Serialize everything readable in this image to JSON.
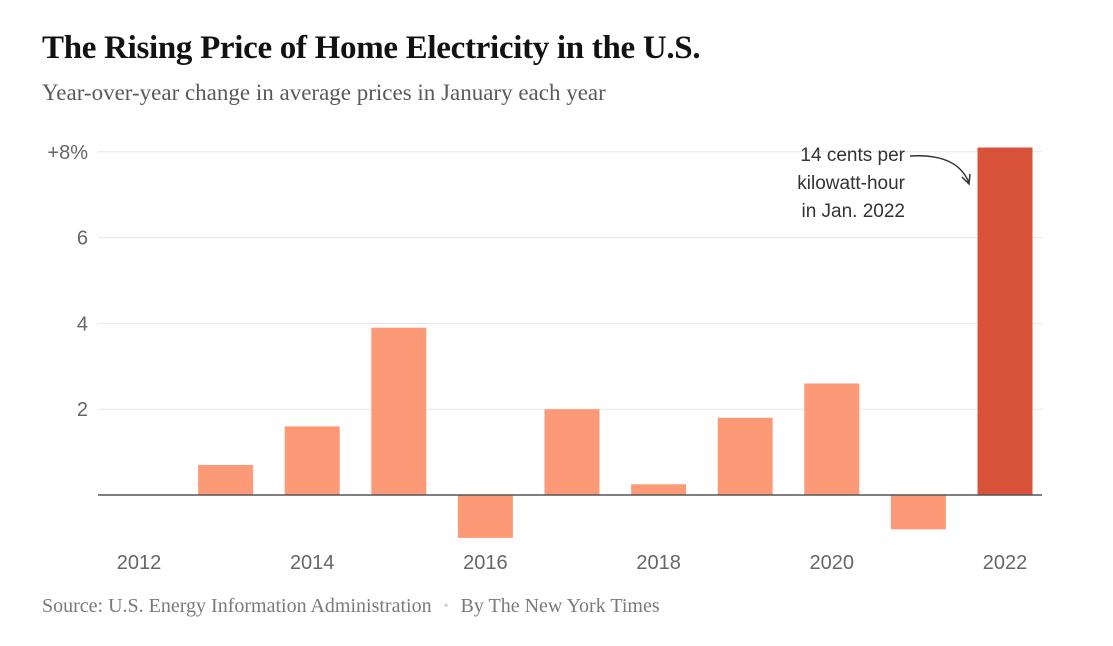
{
  "chart_data": {
    "type": "bar",
    "title": "The Rising Price of Home Electricity in the U.S.",
    "subtitle": "Year-over-year change in average prices in January each year",
    "x": [
      2012,
      2013,
      2014,
      2015,
      2016,
      2017,
      2018,
      2019,
      2020,
      2021,
      2022
    ],
    "values": [
      0,
      0.7,
      1.6,
      3.9,
      -1.0,
      2.0,
      0.25,
      1.8,
      2.6,
      -0.8,
      8.1
    ],
    "ylim": [
      -1.5,
      8
    ],
    "y_ticks": [
      {
        "value": 8,
        "label": "+8%"
      },
      {
        "value": 6,
        "label": "6"
      },
      {
        "value": 4,
        "label": "4"
      },
      {
        "value": 2,
        "label": "2"
      }
    ],
    "x_ticks": [
      {
        "value": 2012,
        "label": "2012"
      },
      {
        "value": 2014,
        "label": "2014"
      },
      {
        "value": 2016,
        "label": "2016"
      },
      {
        "value": 2018,
        "label": "2018"
      },
      {
        "value": 2020,
        "label": "2020"
      },
      {
        "value": 2022,
        "label": "2022"
      }
    ],
    "highlight": {
      "x": 2022,
      "color": "#d9533a"
    },
    "bar_color": "#fc9a77",
    "grid": true,
    "annotation": {
      "x": 2022,
      "lines": [
        "14 cents per",
        "kilowatt-hour",
        "in Jan. 2022"
      ]
    }
  },
  "footer": {
    "source": "Source: U.S. Energy Information Administration",
    "separator": "•",
    "byline": "By The New York Times"
  }
}
